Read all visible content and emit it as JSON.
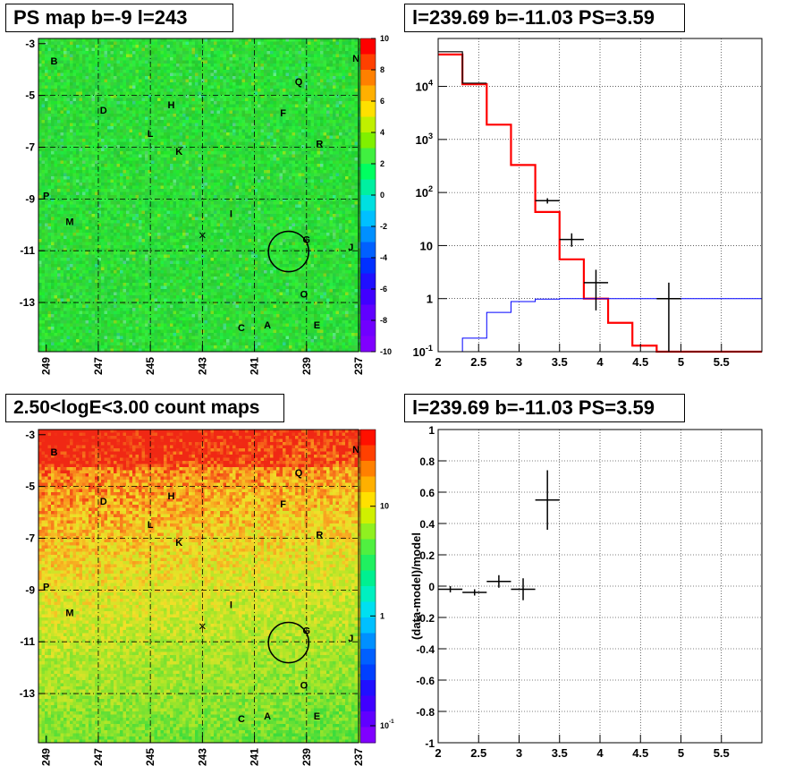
{
  "panels": {
    "ps_map": {
      "title": "PS map b=-9 l=243",
      "x_ticks": [
        "249",
        "247",
        "245",
        "243",
        "241",
        "239",
        "237"
      ],
      "y_ticks": [
        "-3",
        "-5",
        "-7",
        "-9",
        "-11",
        "-13"
      ],
      "colorbar_ticks": [
        "10",
        "8",
        "6",
        "4",
        "2",
        "0",
        "-2",
        "-4",
        "-6",
        "-8",
        "-10"
      ],
      "colorbar_range": [
        -10,
        10
      ]
    },
    "spectrum": {
      "title": "l=239.69 b=-11.03 PS=3.59",
      "x_ticks": [
        "2",
        "2.5",
        "3",
        "3.5",
        "4",
        "4.5",
        "5",
        "5.5"
      ],
      "y_ticks": [
        "10^4",
        "10^3",
        "10^2",
        "10",
        "1",
        "10^-1"
      ]
    },
    "count_map": {
      "title": "2.50<logE<3.00 count maps",
      "x_ticks": [
        "249",
        "247",
        "245",
        "243",
        "241",
        "239",
        "237"
      ],
      "y_ticks": [
        "-3",
        "-5",
        "-7",
        "-9",
        "-11",
        "-13"
      ],
      "colorbar_ticks": [
        "10",
        "1",
        "10^-1"
      ]
    },
    "residual": {
      "title": "l=239.69 b=-11.03 PS=3.59",
      "ylabel": "(data-model)/model",
      "x_ticks": [
        "2",
        "2.5",
        "3",
        "3.5",
        "4",
        "4.5",
        "5",
        "5.5"
      ],
      "y_ticks": [
        "1",
        "0.8",
        "0.6",
        "0.4",
        "0.2",
        "0",
        "-0.2",
        "-0.4",
        "-0.6",
        "-0.8",
        "-1"
      ]
    }
  },
  "source_labels": [
    {
      "name": "B",
      "l": 248.7,
      "b": -3.8
    },
    {
      "name": "N",
      "l": 237.1,
      "b": -3.7
    },
    {
      "name": "Q",
      "l": 239.3,
      "b": -4.6
    },
    {
      "name": "H",
      "l": 244.2,
      "b": -5.5
    },
    {
      "name": "D",
      "l": 246.8,
      "b": -5.7
    },
    {
      "name": "F",
      "l": 239.9,
      "b": -5.8
    },
    {
      "name": "L",
      "l": 245.0,
      "b": -6.6
    },
    {
      "name": "R",
      "l": 238.5,
      "b": -7.0
    },
    {
      "name": "K",
      "l": 243.9,
      "b": -7.3
    },
    {
      "name": "P",
      "l": 249.0,
      "b": -9.0
    },
    {
      "name": "I",
      "l": 241.9,
      "b": -9.7
    },
    {
      "name": "M",
      "l": 248.1,
      "b": -10.0
    },
    {
      "name": "G",
      "l": 239.0,
      "b": -10.7
    },
    {
      "name": "J",
      "l": 237.3,
      "b": -11.0
    },
    {
      "name": "O",
      "l": 239.1,
      "b": -12.8
    },
    {
      "name": "C",
      "l": 241.5,
      "b": -14.1
    },
    {
      "name": "A",
      "l": 240.5,
      "b": -14.0
    },
    {
      "name": "E",
      "l": 238.6,
      "b": -14.0
    }
  ],
  "map_markers": {
    "circle": {
      "l": 239.69,
      "b": -11.03,
      "radius_deg": 0.5
    },
    "cross": {
      "l": 243.0,
      "b": -10.4
    }
  },
  "chart_data": [
    {
      "type": "heatmap",
      "title": "PS map b=-9 l=243",
      "xlabel": "",
      "ylabel": "",
      "x_range": [
        249.3,
        237.0
      ],
      "y_range": [
        -2.8,
        -14.9
      ],
      "colorbar": {
        "min": -10,
        "max": 10,
        "scale": "linear"
      },
      "description_values": "mostly near 0 (green)"
    },
    {
      "type": "line",
      "title": "l=239.69 b=-11.03 PS=3.59",
      "xlim": [
        2,
        6
      ],
      "ylim": [
        0.1,
        80000
      ],
      "yscale": "log",
      "series": [
        {
          "kind": "step",
          "color": "#ff0000",
          "edges": [
            2.0,
            2.3,
            2.6,
            2.9,
            3.2,
            3.5,
            3.8,
            4.1,
            4.4,
            4.7,
            5.0,
            6.0
          ],
          "values": [
            40000,
            11000,
            1900,
            330,
            43,
            5.5,
            1.0,
            0.35,
            0.13,
            0.1,
            0.1
          ]
        },
        {
          "kind": "step",
          "color": "#0000ff",
          "edges": [
            2.0,
            2.3,
            2.6,
            2.9,
            3.2,
            3.5,
            3.8,
            4.1,
            4.4,
            4.7,
            5.0,
            6.0
          ],
          "values": [
            0.1,
            0.18,
            0.55,
            0.88,
            0.98,
            1.0,
            1.0,
            1.0,
            1.0,
            1.0,
            1.0
          ]
        },
        {
          "kind": "step",
          "color": "#000000",
          "edges": [
            2.0,
            2.3,
            2.6
          ],
          "values": [
            45000,
            11500
          ]
        },
        {
          "kind": "points",
          "color": "#000000",
          "points": [
            {
              "x": 3.35,
              "y": 70,
              "xerr": 0.15,
              "ylo": 62,
              "yhi": 78
            },
            {
              "x": 3.65,
              "y": 13,
              "xerr": 0.15,
              "ylo": 9.5,
              "yhi": 17
            },
            {
              "x": 3.95,
              "y": 2.0,
              "xerr": 0.15,
              "ylo": 0.6,
              "yhi": 3.5
            },
            {
              "x": 4.85,
              "y": 1.0,
              "xerr": 0.15,
              "ylo": 0.1,
              "yhi": 2.0
            }
          ]
        }
      ]
    },
    {
      "type": "heatmap",
      "title": "2.50<logE<3.00 count maps",
      "xlabel": "",
      "ylabel": "",
      "x_range": [
        249.3,
        237.0
      ],
      "y_range": [
        -2.8,
        -14.9
      ],
      "colorbar": {
        "min": 0.07,
        "max": 50,
        "scale": "log"
      }
    },
    {
      "type": "scatter",
      "title": "l=239.69 b=-11.03 PS=3.59",
      "ylabel": "(data-model)/model",
      "xlim": [
        2,
        6
      ],
      "ylim": [
        -1,
        1
      ],
      "points": [
        {
          "x": 2.15,
          "y": -0.02,
          "xerr": 0.15,
          "yerr": 0.02
        },
        {
          "x": 2.45,
          "y": -0.04,
          "xerr": 0.15,
          "yerr": 0.02
        },
        {
          "x": 2.75,
          "y": 0.03,
          "xerr": 0.15,
          "yerr": 0.04
        },
        {
          "x": 3.05,
          "y": -0.02,
          "xerr": 0.15,
          "yerr": 0.07
        },
        {
          "x": 3.35,
          "y": 0.55,
          "xerr": 0.15,
          "yerr": 0.19
        }
      ]
    }
  ],
  "colors": {
    "red_model": "#ff0000",
    "blue_model": "#0000ff",
    "data_points": "#000000",
    "grid": "#000000"
  }
}
